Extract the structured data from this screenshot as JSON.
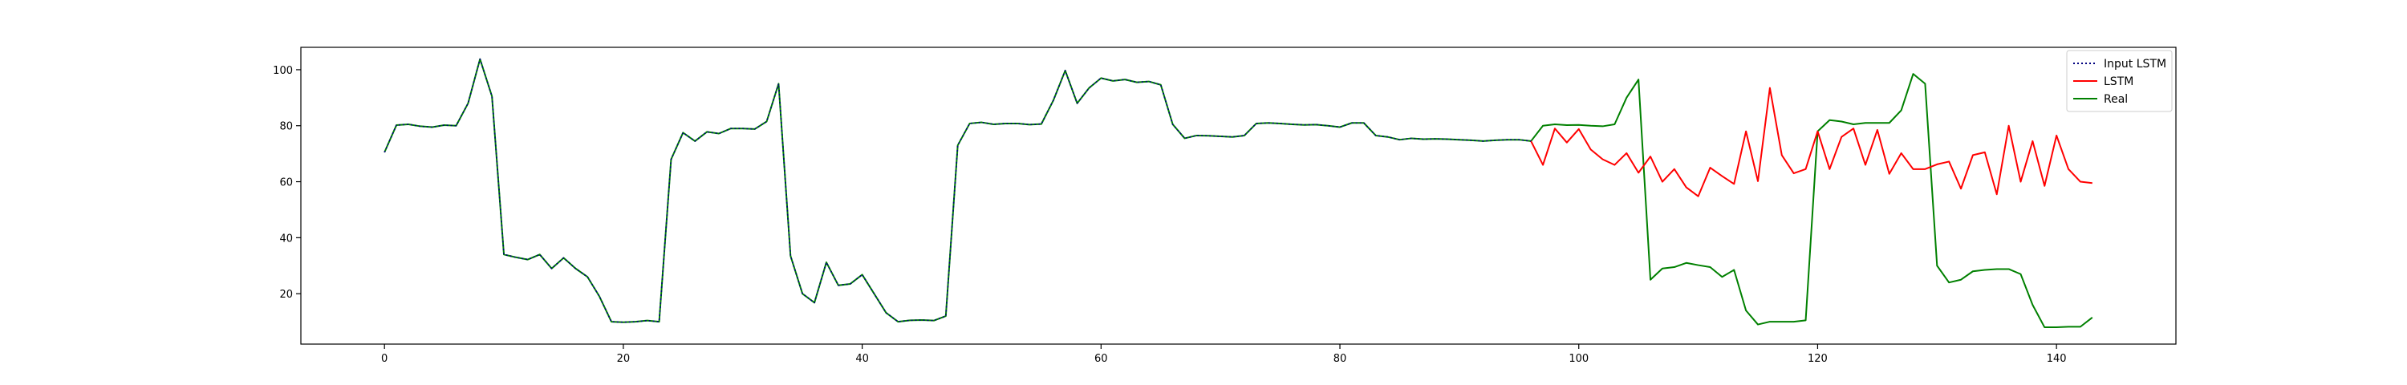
{
  "chart_data": {
    "type": "line",
    "title": "",
    "xlabel": "",
    "ylabel": "",
    "xlim": [
      -7,
      150
    ],
    "ylim": [
      2,
      108
    ],
    "xticks": [
      0,
      20,
      40,
      60,
      80,
      100,
      120,
      140
    ],
    "yticks": [
      20,
      40,
      60,
      80,
      100
    ],
    "grid": false,
    "legend_position": "top-right",
    "series": [
      {
        "name": "Input LSTM",
        "color": "#00007f",
        "style": "dotted",
        "x": [
          0,
          1,
          2,
          3,
          4,
          5,
          6,
          7,
          8,
          9,
          10,
          11,
          12,
          13,
          14,
          15,
          16,
          17,
          18,
          19,
          20,
          21,
          22,
          23,
          24,
          25,
          26,
          27,
          28,
          29,
          30,
          31,
          32,
          33,
          34,
          35,
          36,
          37,
          38,
          39,
          40,
          41,
          42,
          43,
          44,
          45,
          46,
          47,
          48,
          49,
          50,
          51,
          52,
          53,
          54,
          55,
          56,
          57,
          58,
          59,
          60,
          61,
          62,
          63,
          64,
          65,
          66,
          67,
          68,
          69,
          70,
          71,
          72,
          73,
          74,
          75,
          76,
          77,
          78,
          79,
          80,
          81,
          82,
          83,
          84,
          85,
          86,
          87,
          88,
          89,
          90,
          91,
          92,
          93,
          94,
          95,
          96
        ],
        "values": [
          70.5,
          80.2,
          80.5,
          79.8,
          79.5,
          80.2,
          80.0,
          88.0,
          103.8,
          90.5,
          34.0,
          33.0,
          32.2,
          34.0,
          29.0,
          32.8,
          29.0,
          26.0,
          19.0,
          10.0,
          9.8,
          10.0,
          10.4,
          10.0,
          68.0,
          77.5,
          74.5,
          77.8,
          77.2,
          79.0,
          79.0,
          78.8,
          81.5,
          95.0,
          33.5,
          20.0,
          16.8,
          31.2,
          23.0,
          23.5,
          26.8,
          20.0,
          13.2,
          10.0,
          10.5,
          10.6,
          10.4,
          12.0,
          73.0,
          80.8,
          81.2,
          80.5,
          80.8,
          80.8,
          80.4,
          80.6,
          89.0,
          99.7,
          88.0,
          93.5,
          97.0,
          96.0,
          96.5,
          95.5,
          95.8,
          94.6,
          80.5,
          75.5,
          76.5,
          76.4,
          76.2,
          76.0,
          76.5,
          80.8,
          81.0,
          80.8,
          80.5,
          80.3,
          80.4,
          80.0,
          79.5,
          81.0,
          81.0,
          76.5,
          76.0,
          75.0,
          75.5,
          75.2,
          75.3,
          75.2,
          75.0,
          74.8,
          74.5,
          74.8,
          75.0,
          75.0,
          74.5
        ]
      },
      {
        "name": "LSTM",
        "color": "#ff0000",
        "style": "solid",
        "x": [
          96,
          97,
          98,
          99,
          100,
          101,
          102,
          103,
          104,
          105,
          106,
          107,
          108,
          109,
          110,
          111,
          112,
          113,
          114,
          115,
          116,
          117,
          118,
          119,
          120,
          121,
          122,
          123,
          124,
          125,
          126,
          127,
          128,
          129,
          130,
          131,
          132,
          133,
          134,
          135,
          136,
          137,
          138,
          139,
          140,
          141,
          142,
          143
        ],
        "values": [
          74.5,
          66.0,
          79.0,
          74.0,
          78.8,
          71.5,
          68.0,
          66.0,
          70.2,
          63.2,
          69.0,
          60.0,
          64.5,
          58.0,
          54.8,
          65.0,
          62.0,
          59.2,
          78.0,
          60.2,
          93.5,
          69.5,
          63.0,
          64.5,
          78.0,
          64.5,
          76.0,
          79.0,
          66.0,
          78.5,
          62.8,
          70.2,
          64.5,
          64.5,
          66.2,
          67.2,
          57.5,
          69.5,
          70.5,
          55.5,
          80.0,
          60.0,
          74.5,
          58.5,
          76.5,
          64.5,
          60.0,
          59.5
        ]
      },
      {
        "name": "Real",
        "color": "#008000",
        "style": "solid",
        "x": [
          0,
          1,
          2,
          3,
          4,
          5,
          6,
          7,
          8,
          9,
          10,
          11,
          12,
          13,
          14,
          15,
          16,
          17,
          18,
          19,
          20,
          21,
          22,
          23,
          24,
          25,
          26,
          27,
          28,
          29,
          30,
          31,
          32,
          33,
          34,
          35,
          36,
          37,
          38,
          39,
          40,
          41,
          42,
          43,
          44,
          45,
          46,
          47,
          48,
          49,
          50,
          51,
          52,
          53,
          54,
          55,
          56,
          57,
          58,
          59,
          60,
          61,
          62,
          63,
          64,
          65,
          66,
          67,
          68,
          69,
          70,
          71,
          72,
          73,
          74,
          75,
          76,
          77,
          78,
          79,
          80,
          81,
          82,
          83,
          84,
          85,
          86,
          87,
          88,
          89,
          90,
          91,
          92,
          93,
          94,
          95,
          96,
          97,
          98,
          99,
          100,
          101,
          102,
          103,
          104,
          105,
          106,
          107,
          108,
          109,
          110,
          111,
          112,
          113,
          114,
          115,
          116,
          117,
          118,
          119,
          120,
          121,
          122,
          123,
          124,
          125,
          126,
          127,
          128,
          129,
          130,
          131,
          132,
          133,
          134,
          135,
          136,
          137,
          138,
          139,
          140,
          141,
          142,
          143
        ],
        "values": [
          70.5,
          80.2,
          80.5,
          79.8,
          79.5,
          80.2,
          80.0,
          88.0,
          103.8,
          90.5,
          34.0,
          33.0,
          32.2,
          34.0,
          29.0,
          32.8,
          29.0,
          26.0,
          19.0,
          10.0,
          9.8,
          10.0,
          10.4,
          10.0,
          68.0,
          77.5,
          74.5,
          77.8,
          77.2,
          79.0,
          79.0,
          78.8,
          81.5,
          95.0,
          33.5,
          20.0,
          16.8,
          31.2,
          23.0,
          23.5,
          26.8,
          20.0,
          13.2,
          10.0,
          10.5,
          10.6,
          10.4,
          12.0,
          73.0,
          80.8,
          81.2,
          80.5,
          80.8,
          80.8,
          80.4,
          80.6,
          89.0,
          99.7,
          88.0,
          93.5,
          97.0,
          96.0,
          96.5,
          95.5,
          95.8,
          94.6,
          80.5,
          75.5,
          76.5,
          76.4,
          76.2,
          76.0,
          76.5,
          80.8,
          81.0,
          80.8,
          80.5,
          80.3,
          80.4,
          80.0,
          79.5,
          81.0,
          81.0,
          76.5,
          76.0,
          75.0,
          75.5,
          75.2,
          75.3,
          75.2,
          75.0,
          74.8,
          74.5,
          74.8,
          75.0,
          75.0,
          74.5,
          80.0,
          80.5,
          80.2,
          80.3,
          80.0,
          79.8,
          80.5,
          90.0,
          96.5,
          25.0,
          29.0,
          29.5,
          31.0,
          30.2,
          29.5,
          26.0,
          28.5,
          14.0,
          9.0,
          10.0,
          10.0,
          10.0,
          10.5,
          78.0,
          82.0,
          81.5,
          80.5,
          81.0,
          81.0,
          81.0,
          85.5,
          98.5,
          95.0,
          30.0,
          24.0,
          25.0,
          28.0,
          28.5,
          28.8,
          28.8,
          27.0,
          16.0,
          8.0,
          8.0,
          8.2,
          8.2,
          11.5
        ]
      }
    ]
  }
}
